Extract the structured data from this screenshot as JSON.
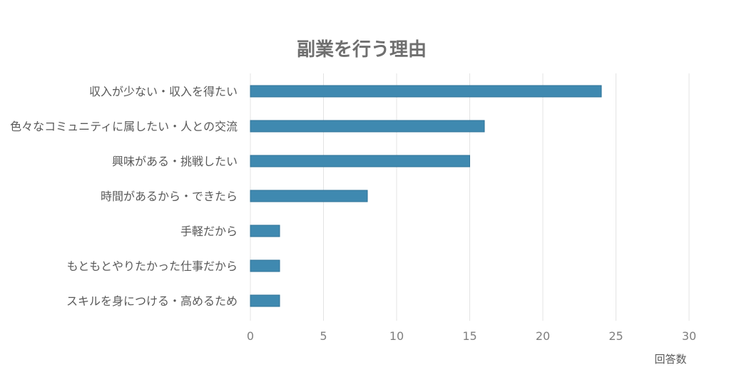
{
  "chart_data": {
    "type": "bar",
    "orientation": "horizontal",
    "title": "副業を行う理由",
    "xlabel": "回答数",
    "ylabel": "",
    "categories": [
      "収入が少ない・収入を得たい",
      "色々なコミュニティに属したい・人との交流",
      "興味がある・挑戦したい",
      "時間があるから・できたら",
      "手軽だから",
      "もともとやりたかった仕事だから",
      "スキルを身につける・高めるため"
    ],
    "values": [
      24,
      16,
      15,
      8,
      2,
      2,
      2
    ],
    "xlim": [
      0,
      30
    ],
    "xticks": [
      "0",
      "5",
      "10",
      "15",
      "20",
      "25",
      "30"
    ],
    "grid": true,
    "legend": "none",
    "bar_color": "#3f89b0"
  }
}
